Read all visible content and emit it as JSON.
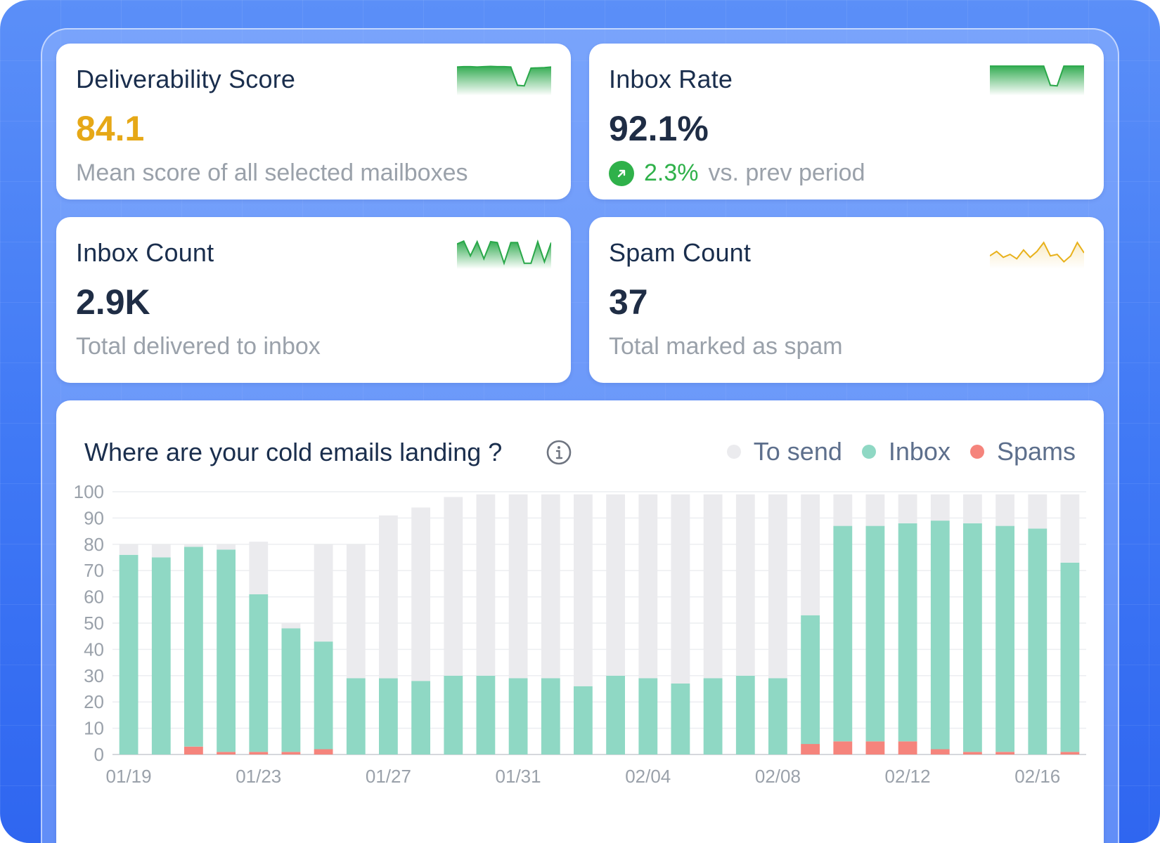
{
  "colors": {
    "accent_green": "#2fb14a",
    "score_yellow": "#e6a817",
    "to_send": "#ebebee",
    "inbox": "#8fd8c4",
    "spams": "#f5847c",
    "spark_green": "#2aa84a",
    "spark_yellow": "#e8b11b"
  },
  "cards": {
    "deliverability": {
      "title": "Deliverability Score",
      "value": "84.1",
      "subtitle": "Mean score of all selected mailboxes"
    },
    "inbox_rate": {
      "title": "Inbox Rate",
      "value": "92.1%",
      "trend_value": "2.3%",
      "trend_text": "vs. prev period",
      "trend_icon": "arrow-up-right-icon"
    },
    "inbox_count": {
      "title": "Inbox Count",
      "value": "2.9K",
      "subtitle": "Total delivered to inbox"
    },
    "spam_count": {
      "title": "Spam Count",
      "value": "37",
      "subtitle": "Total marked as spam"
    }
  },
  "chart": {
    "title": "Where are your cold emails landing ?",
    "info_icon": "info-icon",
    "legend": [
      {
        "label": "To send",
        "color": "#ebebee"
      },
      {
        "label": "Inbox",
        "color": "#8fd8c4"
      },
      {
        "label": "Spams",
        "color": "#f5847c"
      }
    ]
  },
  "chart_data": {
    "type": "bar",
    "stacked": true,
    "title": "Where are your cold emails landing ?",
    "ylim": [
      0,
      100
    ],
    "yticks": [
      0,
      10,
      20,
      30,
      40,
      50,
      60,
      70,
      80,
      90,
      100
    ],
    "x_tick_labels": [
      "01/19",
      "01/23",
      "01/27",
      "01/31",
      "02/04",
      "02/08",
      "02/12",
      "02/16"
    ],
    "x_tick_indices": [
      0,
      4,
      8,
      12,
      16,
      20,
      24,
      28
    ],
    "grid": true,
    "legend_position": "top-right",
    "categories": [
      "01/19",
      "01/20",
      "01/21",
      "01/22",
      "01/23",
      "01/24",
      "01/25",
      "01/26",
      "01/27",
      "01/28",
      "01/29",
      "01/30",
      "01/31",
      "02/01",
      "02/02",
      "02/03",
      "02/04",
      "02/05",
      "02/06",
      "02/07",
      "02/08",
      "02/09",
      "02/10",
      "02/11",
      "02/12",
      "02/13",
      "02/14",
      "02/15",
      "02/16",
      "02/17"
    ],
    "series": [
      {
        "name": "Spams",
        "values": [
          0,
          0,
          3,
          1,
          1,
          1,
          2,
          0,
          0,
          0,
          0,
          0,
          0,
          0,
          0,
          0,
          0,
          0,
          0,
          0,
          0,
          4,
          5,
          5,
          5,
          2,
          1,
          1,
          0,
          1
        ]
      },
      {
        "name": "Inbox",
        "values": [
          76,
          75,
          76,
          77,
          60,
          47,
          41,
          29,
          29,
          28,
          30,
          30,
          29,
          29,
          26,
          30,
          29,
          27,
          29,
          30,
          29,
          49,
          82,
          82,
          83,
          87,
          87,
          86,
          86,
          72
        ]
      },
      {
        "name": "To send",
        "values": [
          4,
          5,
          1,
          2,
          20,
          2,
          37,
          51,
          62,
          66,
          68,
          69,
          70,
          70,
          73,
          69,
          70,
          72,
          70,
          69,
          70,
          46,
          12,
          12,
          11,
          10,
          11,
          12,
          13,
          26
        ]
      }
    ],
    "totals": [
      80,
      80,
      80,
      80,
      81,
      50,
      80,
      80,
      91,
      94,
      98,
      99,
      99,
      99,
      99,
      99,
      99,
      99,
      99,
      99,
      99,
      99,
      99,
      99,
      99,
      99,
      99,
      99,
      99,
      99
    ]
  },
  "sparklines": {
    "deliverability": {
      "color": "#2aa84a",
      "values": [
        92,
        93,
        93,
        92,
        93,
        94,
        93,
        93,
        92,
        30,
        28,
        88,
        89,
        90,
        92
      ]
    },
    "inbox_rate": {
      "color": "#2aa84a",
      "values": [
        95,
        95,
        95,
        95,
        95,
        95,
        95,
        95,
        95,
        30,
        28,
        95,
        95,
        95,
        95
      ]
    },
    "inbox_count": {
      "color": "#2aa84a",
      "values": [
        80,
        90,
        40,
        88,
        30,
        88,
        85,
        15,
        85,
        85,
        15,
        15,
        88,
        20,
        85
      ]
    },
    "spam_count": {
      "color": "#e8b11b",
      "values": [
        40,
        55,
        35,
        45,
        30,
        60,
        35,
        55,
        85,
        40,
        45,
        20,
        40,
        85,
        50
      ]
    }
  }
}
